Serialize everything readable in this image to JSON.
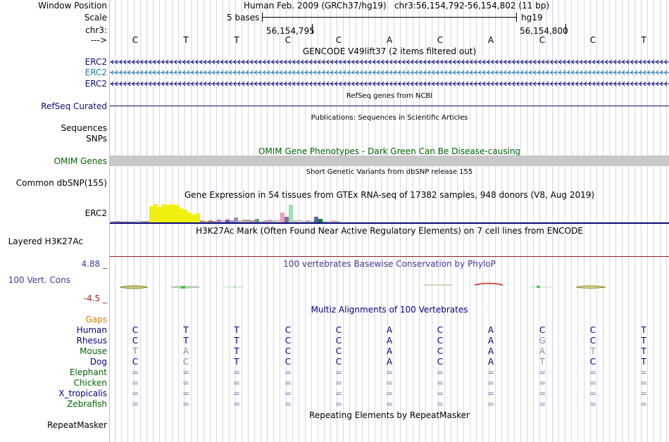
{
  "labels": {
    "window_position": "Window Position",
    "scale": "Scale",
    "chrom": "chr3:",
    "arrow": "--->",
    "erc2_1": "ERC2",
    "erc2_2": "ERC2",
    "erc2_3": "ERC2",
    "refseq": "RefSeq Curated",
    "sequences": "Sequences",
    "snps": "SNPs",
    "omim": "OMIM Genes",
    "dbsnp": "Common dbSNP(155)",
    "gtex_erc2": "ERC2",
    "h3k27ac": "Layered H3K27Ac",
    "cons_max": "4.88 _",
    "cons": "100 Vert. Cons",
    "cons_min": "-4.5 _",
    "gaps": "Gaps",
    "repeatmasker": "RepeatMasker"
  },
  "header": {
    "position": "Human Feb. 2009 (GRCh37/hg19)   chr3:56,154,792-56,154,802 (11 bp)",
    "scale_text": "5 bases",
    "assembly": "hg19",
    "coord1": "56,154,795",
    "coord2": "56,154,800"
  },
  "bases": [
    "C",
    "T",
    "T",
    "C",
    "C",
    "A",
    "C",
    "A",
    "C",
    "C",
    "T"
  ],
  "titles": {
    "gencode": "GENCODE V49lift37 (2 items filtered out)",
    "refseq": "RefSeq genes from NCBI",
    "pubs": "Publications: Sequences in Scientific Articles",
    "omim": "OMIM Gene Phenotypes - Dark Green Can Be Disease-causing",
    "dbsnp": "Short Genetic Variants from dbSNP release 155",
    "gtex": "Gene Expression in 54 tissues from GTEx RNA-seq of 17382 samples, 948 donors (V8, Aug 2019)",
    "h3k27ac": "H3K27Ac Mark (Often Found Near Active Regulatory Elements) on 7 cell lines from ENCODE",
    "phylop": "100 vertebrates Basewise Conservation by PhyloP",
    "multiz": "Multiz Alignments of 100 Vertebrates",
    "repeat": "Repeating Elements by RepeatMasker"
  },
  "colors": {
    "gene_dark": "#0c0c78",
    "gene_light": "#1f77b4",
    "omim_bar": "#c8c8c8",
    "omim_text": "#006400",
    "phylop_text": "#3c3c96",
    "cons_neg": "#aa2020",
    "gaps_text": "#d08000",
    "species_dark_green": "#006400",
    "species_navy": "#000080",
    "grid_line": "#d6d6e6"
  },
  "gtex_values": [
    0.06,
    0.08,
    0.03,
    0.05,
    0.04,
    0.06,
    0.1,
    0.05,
    0.07,
    0.76,
    0.86,
    0.72,
    0.86,
    0.82,
    0.88,
    0.84,
    0.66,
    0.6,
    0.48,
    0.38,
    0.44,
    0.1,
    0.06,
    0.1,
    0.08,
    0.13,
    0.1,
    0.12,
    0.1,
    0.24,
    0.1,
    0.12,
    0.14,
    0.1,
    0.18,
    0.08,
    0.1,
    0.14,
    0.1,
    0.12,
    0.46,
    0.26,
    0.82,
    0.1,
    0.12,
    0.08,
    0.1,
    0.08,
    0.28,
    0.18,
    0.08,
    0.06,
    0.1,
    0.06
  ],
  "alignment": [
    {
      "species": "Human",
      "color": "#000080",
      "bases": [
        "C",
        "T",
        "T",
        "C",
        "C",
        "A",
        "C",
        "A",
        "C",
        "C",
        "T"
      ]
    },
    {
      "species": "Rhesus",
      "color": "#000080",
      "bases": [
        "C",
        "T",
        "T",
        "C",
        "C",
        "A",
        "C",
        "A",
        "G",
        "C",
        "T"
      ]
    },
    {
      "species": "Mouse",
      "color": "#006400",
      "bases": [
        "T",
        "A",
        "T",
        "C",
        "C",
        "A",
        "C",
        "A",
        "A",
        "T",
        "T"
      ]
    },
    {
      "species": "Dog",
      "color": "#000080",
      "bases": [
        "C",
        "C",
        "T",
        "C",
        "C",
        "A",
        "C",
        "A",
        "T",
        "C",
        "T"
      ]
    },
    {
      "species": "Elephant",
      "color": "#006400",
      "bases": [
        "=",
        "=",
        "=",
        "=",
        "=",
        "=",
        "=",
        "=",
        "=",
        "=",
        "="
      ]
    },
    {
      "species": "Chicken",
      "color": "#006400",
      "bases": [
        "=",
        "=",
        "=",
        "=",
        "=",
        "=",
        "=",
        "=",
        "=",
        "=",
        "="
      ]
    },
    {
      "species": "X_tropicalis",
      "color": "#000080",
      "bases": [
        "=",
        "=",
        "=",
        "=",
        "=",
        "=",
        "=",
        "=",
        "=",
        "=",
        "="
      ]
    },
    {
      "species": "Zebrafish",
      "color": "#006400",
      "bases": [
        "=",
        "=",
        "=",
        "=",
        "=",
        "=",
        "=",
        "=",
        "=",
        "=",
        "="
      ]
    }
  ]
}
